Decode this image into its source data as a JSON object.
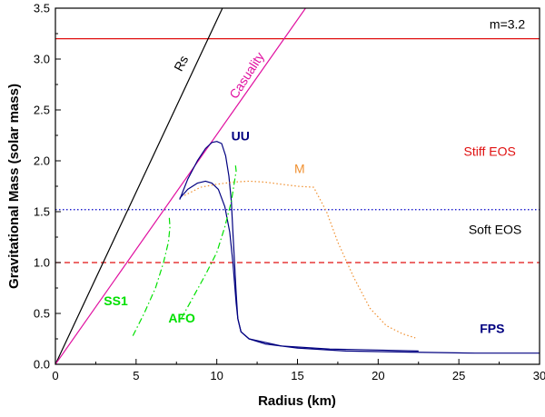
{
  "chart_data": {
    "type": "line",
    "xlabel": "Radius (km)",
    "ylabel": "Gravitational Mass (solar mass)",
    "xlim": [
      0,
      30
    ],
    "ylim": [
      0,
      3.5
    ],
    "x_ticks": [
      "0",
      "5",
      "10",
      "15",
      "20",
      "25",
      "30"
    ],
    "y_ticks": [
      "0.0",
      "0.5",
      "1.0",
      "1.5",
      "2.0",
      "2.5",
      "3.0",
      "3.5"
    ],
    "grid": false,
    "horizontal_lines": [
      {
        "y": 3.2,
        "color": "#e01010",
        "style": "solid"
      },
      {
        "y": 1.52,
        "color": "#0000c8",
        "style": "dotted"
      },
      {
        "y": 1.0,
        "color": "#e01010",
        "style": "dashed"
      }
    ],
    "lines": [
      {
        "label": "Rs",
        "x": [
          0,
          10.35
        ],
        "y": [
          0,
          3.5
        ],
        "color": "#000000"
      },
      {
        "label": "Casuality",
        "x": [
          0,
          15.5
        ],
        "y": [
          0,
          3.5
        ],
        "color": "#e010a0"
      }
    ],
    "series": [
      {
        "name": "UU",
        "color": "#000080",
        "style": "solid",
        "x": [
          7.7,
          8.2,
          8.8,
          9.3,
          9.7,
          10.0,
          10.3,
          10.55,
          10.75,
          10.9,
          11.0,
          11.1,
          11.2,
          11.3,
          11.5,
          12.0,
          13.0,
          15.0,
          18.0,
          22.0,
          26.0,
          30.0
        ],
        "y": [
          1.62,
          1.82,
          2.0,
          2.12,
          2.18,
          2.19,
          2.17,
          2.05,
          1.85,
          1.6,
          1.3,
          1.0,
          0.7,
          0.45,
          0.32,
          0.25,
          0.2,
          0.16,
          0.13,
          0.12,
          0.11,
          0.11
        ]
      },
      {
        "name": "FPS",
        "color": "#000080",
        "style": "solid",
        "x": [
          7.7,
          8.2,
          8.8,
          9.3,
          9.7,
          10.1,
          10.5,
          10.8,
          11.0,
          11.1,
          11.2,
          11.3,
          11.5,
          12.0,
          14.0,
          17.0,
          20.0,
          22.5
        ],
        "y": [
          1.63,
          1.72,
          1.78,
          1.8,
          1.78,
          1.72,
          1.55,
          1.3,
          1.0,
          0.8,
          0.6,
          0.45,
          0.32,
          0.25,
          0.18,
          0.15,
          0.14,
          0.13
        ]
      },
      {
        "name": "M",
        "color": "#f09030",
        "style": "dotted",
        "x": [
          8.0,
          9.0,
          10.0,
          11.0,
          12.0,
          13.0,
          14.0,
          15.0,
          16.0,
          16.8,
          17.5,
          18.5,
          19.5,
          20.5,
          21.5,
          22.3
        ],
        "y": [
          1.66,
          1.74,
          1.77,
          1.79,
          1.8,
          1.79,
          1.77,
          1.75,
          1.74,
          1.5,
          1.2,
          0.85,
          0.55,
          0.38,
          0.3,
          0.26
        ]
      },
      {
        "name": "SS1",
        "color": "#00e000",
        "style": "dashdot",
        "x": [
          4.8,
          5.5,
          6.2,
          6.7,
          7.0,
          7.1,
          7.05
        ],
        "y": [
          0.28,
          0.5,
          0.75,
          1.0,
          1.2,
          1.35,
          1.45
        ]
      },
      {
        "name": "AFO",
        "color": "#00e000",
        "style": "dashdot",
        "x": [
          7.8,
          8.5,
          9.3,
          10.0,
          10.5,
          10.9,
          11.1,
          11.2,
          11.15
        ],
        "y": [
          0.45,
          0.65,
          0.88,
          1.1,
          1.35,
          1.6,
          1.8,
          1.9,
          1.97
        ]
      }
    ],
    "annotations": [
      {
        "text": "m=3.2",
        "x": 26.9,
        "y": 3.3,
        "color": "#000000",
        "size": 14,
        "rotate": 0
      },
      {
        "text": "Rs",
        "x": 7.8,
        "y": 2.87,
        "color": "#000000",
        "size": 15,
        "rotate": -62
      },
      {
        "text": "Casuality",
        "x": 11.2,
        "y": 2.6,
        "color": "#e010a0",
        "size": 15,
        "rotate": -57
      },
      {
        "text": "UU",
        "x": 10.9,
        "y": 2.2,
        "color": "#000080",
        "size": 15,
        "rotate": 0,
        "bold": true
      },
      {
        "text": "M",
        "x": 14.8,
        "y": 1.88,
        "color": "#f09030",
        "size": 22,
        "rotate": 0
      },
      {
        "text": "Stiff EOS",
        "x": 25.3,
        "y": 2.05,
        "color": "#e01010",
        "size": 14,
        "rotate": 0
      },
      {
        "text": "Soft EOS",
        "x": 25.6,
        "y": 1.28,
        "color": "#000000",
        "size": 14,
        "rotate": 0
      },
      {
        "text": "SS1",
        "x": 3.0,
        "y": 0.58,
        "color": "#00e000",
        "size": 15,
        "rotate": 0,
        "bold": true
      },
      {
        "text": "AFO",
        "x": 7.0,
        "y": 0.41,
        "color": "#00e000",
        "size": 15,
        "rotate": 0,
        "bold": true
      },
      {
        "text": "FPS",
        "x": 26.3,
        "y": 0.31,
        "color": "#000080",
        "size": 15,
        "rotate": 0,
        "bold": true
      }
    ]
  }
}
